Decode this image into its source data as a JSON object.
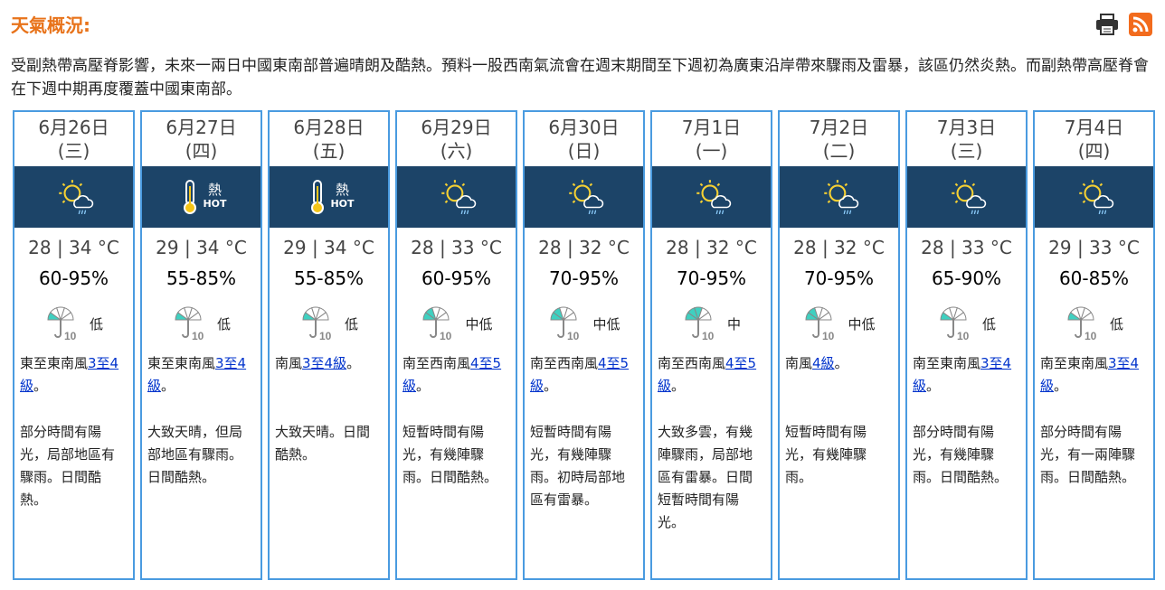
{
  "title": "天氣概況:",
  "icons": {
    "print": "printer-icon",
    "rss": "rss-icon"
  },
  "summary": "受副熱帶高壓脊影響，未來一兩日中國東南部普遍晴朗及酷熱。預料一股西南氣流會在週末期間至下週初為廣東沿岸帶來驟雨及雷暴，該區仍然炎熱。而副熱帶高壓脊會在下週中期再度覆蓋中國東南部。",
  "colors": {
    "accent": "#e8731a",
    "band": "#1c4468",
    "border": "#4a9be0",
    "umbrella": "#3fd0c0"
  },
  "days": [
    {
      "date": "6月26日",
      "weekday": "(三)",
      "icon": "sunny-periods-showers",
      "hot_label": "",
      "hot_en": "",
      "temp": "28 | 34 °C",
      "rh": "60-95%",
      "psr": "低",
      "psr_level": 1,
      "wind_pre": "東至東南風",
      "wind_link": "3至4級",
      "wind_post": "。",
      "desc": "部分時間有陽光，局部地區有驟雨。日間酷熱。"
    },
    {
      "date": "6月27日",
      "weekday": "(四)",
      "icon": "very-hot",
      "hot_label": "熱",
      "hot_en": "HOT",
      "temp": "29 | 34 °C",
      "rh": "55-85%",
      "psr": "低",
      "psr_level": 1,
      "wind_pre": "東至東南風",
      "wind_link": "3至4級",
      "wind_post": "。",
      "desc": "大致天晴，但局部地區有驟雨。日間酷熱。"
    },
    {
      "date": "6月28日",
      "weekday": "(五)",
      "icon": "very-hot",
      "hot_label": "熱",
      "hot_en": "HOT",
      "temp": "29 | 34 °C",
      "rh": "55-85%",
      "psr": "低",
      "psr_level": 1,
      "wind_pre": "南風",
      "wind_link": "3至4級",
      "wind_post": "。",
      "desc": "大致天晴。日間酷熱。"
    },
    {
      "date": "6月29日",
      "weekday": "(六)",
      "icon": "sunny-intervals-showers",
      "hot_label": "",
      "hot_en": "",
      "temp": "28 | 33 °C",
      "rh": "60-95%",
      "psr": "中低",
      "psr_level": 2,
      "wind_pre": "南至西南風",
      "wind_link": "4至5級",
      "wind_post": "。",
      "desc": "短暫時間有陽光，有幾陣驟雨。日間酷熱。"
    },
    {
      "date": "6月30日",
      "weekday": "(日)",
      "icon": "sunny-intervals-showers",
      "hot_label": "",
      "hot_en": "",
      "temp": "28 | 32 °C",
      "rh": "70-95%",
      "psr": "中低",
      "psr_level": 2,
      "wind_pre": "南至西南風",
      "wind_link": "4至5級",
      "wind_post": "。",
      "desc": "短暫時間有陽光，有幾陣驟雨。初時局部地區有雷暴。"
    },
    {
      "date": "7月1日",
      "weekday": "(一)",
      "icon": "sunny-intervals-showers",
      "hot_label": "",
      "hot_en": "",
      "temp": "28 | 32 °C",
      "rh": "70-95%",
      "psr": "中",
      "psr_level": 3,
      "wind_pre": "南至西南風",
      "wind_link": "4至5級",
      "wind_post": "。",
      "desc": "大致多雲，有幾陣驟雨，局部地區有雷暴。日間短暫時間有陽光。"
    },
    {
      "date": "7月2日",
      "weekday": "(二)",
      "icon": "sunny-intervals-showers",
      "hot_label": "",
      "hot_en": "",
      "temp": "28 | 32 °C",
      "rh": "70-95%",
      "psr": "中低",
      "psr_level": 2,
      "wind_pre": "南風",
      "wind_link": "4級",
      "wind_post": "。",
      "desc": "短暫時間有陽光，有幾陣驟雨。"
    },
    {
      "date": "7月3日",
      "weekday": "(三)",
      "icon": "sunny-periods-showers",
      "hot_label": "",
      "hot_en": "",
      "temp": "28 | 33 °C",
      "rh": "65-90%",
      "psr": "低",
      "psr_level": 1,
      "wind_pre": "南至東南風",
      "wind_link": "3至4級",
      "wind_post": "。",
      "desc": "部分時間有陽光，有幾陣驟雨。日間酷熱。"
    },
    {
      "date": "7月4日",
      "weekday": "(四)",
      "icon": "sunny-periods-showers",
      "hot_label": "",
      "hot_en": "",
      "temp": "29 | 33 °C",
      "rh": "60-85%",
      "psr": "低",
      "psr_level": 1,
      "wind_pre": "南至東南風",
      "wind_link": "3至4級",
      "wind_post": "。",
      "desc": "部分時間有陽光，有一兩陣驟雨。日間酷熱。"
    }
  ]
}
